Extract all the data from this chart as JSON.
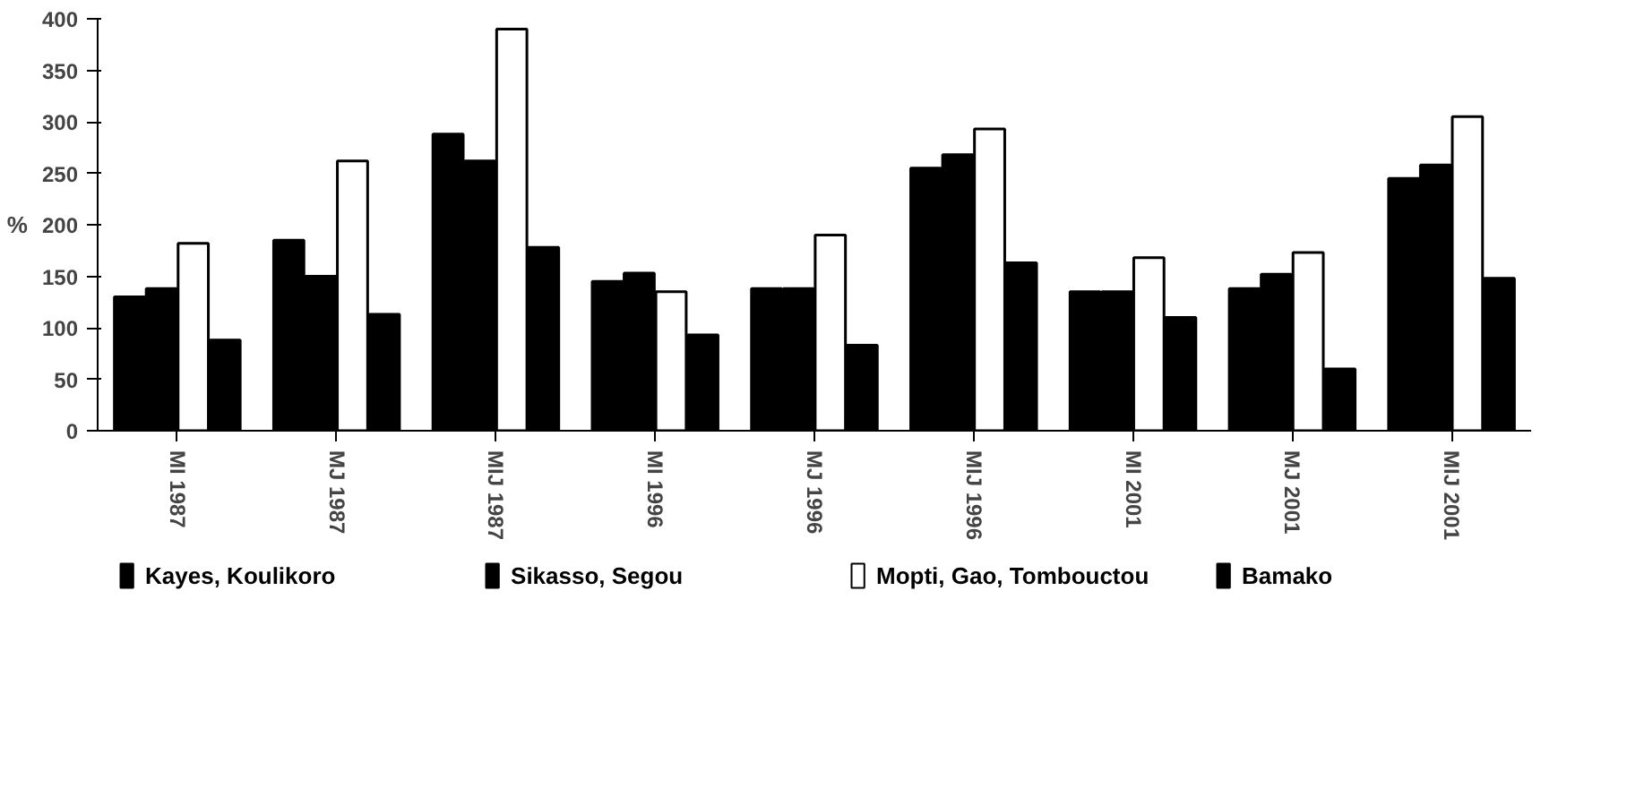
{
  "chart_data": {
    "type": "bar",
    "ylabel": "%",
    "categories": [
      "MI 1987",
      "MJ 1987",
      "MIJ 1987",
      "MI 1996",
      "MJ 1996",
      "MIJ 1996",
      "MI 2001",
      "MJ 2001",
      "MIJ 2001"
    ],
    "series": [
      {
        "name": "Kayes, Koulikoro",
        "color": "#000000",
        "values": [
          130,
          185,
          288,
          145,
          138,
          255,
          135,
          138,
          245
        ]
      },
      {
        "name": "Sikasso, Segou",
        "color": "#000000",
        "values": [
          138,
          150,
          262,
          153,
          138,
          268,
          135,
          152,
          258
        ]
      },
      {
        "name": "Mopti, Gao, Tombouctou",
        "color": "#ffffff",
        "values": [
          182,
          262,
          390,
          135,
          190,
          293,
          168,
          173,
          305
        ]
      },
      {
        "name": "Bamako",
        "color": "#000000",
        "values": [
          88,
          113,
          178,
          93,
          83,
          163,
          110,
          60,
          148
        ]
      }
    ],
    "ylim": [
      0,
      400
    ],
    "yticks": [
      0,
      50,
      100,
      150,
      200,
      250,
      300,
      350,
      400
    ],
    "grid": false,
    "legend": "bottom"
  }
}
